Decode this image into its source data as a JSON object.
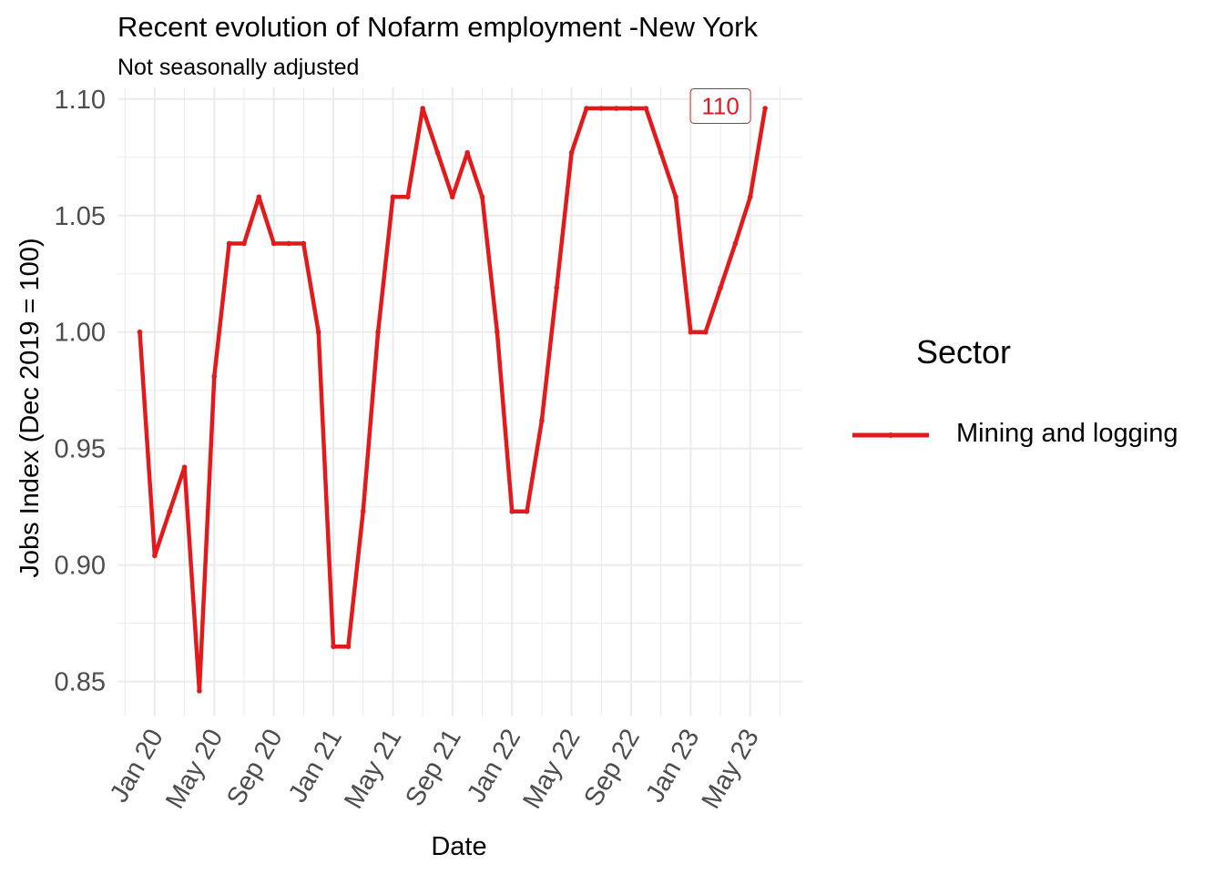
{
  "title": "Recent evolution of Nofarm employment -New York",
  "subtitle": "Not seasonally adjusted",
  "legend": {
    "title": "Sector",
    "label": "Mining and logging"
  },
  "colors": {
    "series": "#e31a1c",
    "grid": "#ebebeb",
    "tick_text": "#4d4d4d"
  },
  "chart_data": {
    "type": "line",
    "title": "Recent evolution of Nofarm employment -New York",
    "subtitle": "Not seasonally adjusted",
    "xlabel": "Date",
    "ylabel": "Jobs Index (Dec 2019 = 100)",
    "xlim": [
      "2019-11-01",
      "2023-08-01"
    ],
    "ylim": [
      0.835,
      1.105
    ],
    "grid": true,
    "legend_position": "right",
    "x_ticks": [
      "Jan 20",
      "May 20",
      "Sep 20",
      "Jan 21",
      "May 21",
      "Sep 21",
      "Jan 22",
      "May 22",
      "Sep 22",
      "Jan 23",
      "May 23"
    ],
    "x_tick_dates": [
      "2020-01-01",
      "2020-05-01",
      "2020-09-01",
      "2021-01-01",
      "2021-05-01",
      "2021-09-01",
      "2022-01-01",
      "2022-05-01",
      "2022-09-01",
      "2023-01-01",
      "2023-05-01"
    ],
    "y_ticks": [
      "0.85",
      "0.90",
      "0.95",
      "1.00",
      "1.05",
      "1.10"
    ],
    "y_tick_values": [
      0.85,
      0.9,
      0.95,
      1.0,
      1.05,
      1.1
    ],
    "annotation": {
      "text": "110",
      "x": "2023-03-01",
      "y": 1.097
    },
    "series": [
      {
        "name": "Mining and logging",
        "x": [
          "2019-12-01",
          "2020-01-01",
          "2020-02-01",
          "2020-03-01",
          "2020-04-01",
          "2020-05-01",
          "2020-06-01",
          "2020-07-01",
          "2020-08-01",
          "2020-09-01",
          "2020-10-01",
          "2020-11-01",
          "2020-12-01",
          "2021-01-01",
          "2021-02-01",
          "2021-03-01",
          "2021-04-01",
          "2021-05-01",
          "2021-06-01",
          "2021-07-01",
          "2021-08-01",
          "2021-09-01",
          "2021-10-01",
          "2021-11-01",
          "2021-12-01",
          "2022-01-01",
          "2022-02-01",
          "2022-03-01",
          "2022-04-01",
          "2022-05-01",
          "2022-06-01",
          "2022-07-01",
          "2022-08-01",
          "2022-09-01",
          "2022-10-01",
          "2022-11-01",
          "2022-12-01",
          "2023-01-01",
          "2023-02-01",
          "2023-03-01",
          "2023-04-01",
          "2023-05-01",
          "2023-06-01"
        ],
        "values": [
          1.0,
          0.904,
          0.923,
          0.942,
          0.846,
          0.981,
          1.038,
          1.038,
          1.058,
          1.038,
          1.038,
          1.038,
          1.0,
          0.865,
          0.865,
          0.923,
          1.0,
          1.058,
          1.058,
          1.096,
          1.077,
          1.058,
          1.077,
          1.058,
          1.0,
          0.923,
          0.923,
          0.962,
          1.019,
          1.077,
          1.096,
          1.096,
          1.096,
          1.096,
          1.096,
          1.077,
          1.058,
          1.0,
          1.0,
          1.019,
          1.038,
          1.058,
          1.096
        ]
      }
    ]
  }
}
